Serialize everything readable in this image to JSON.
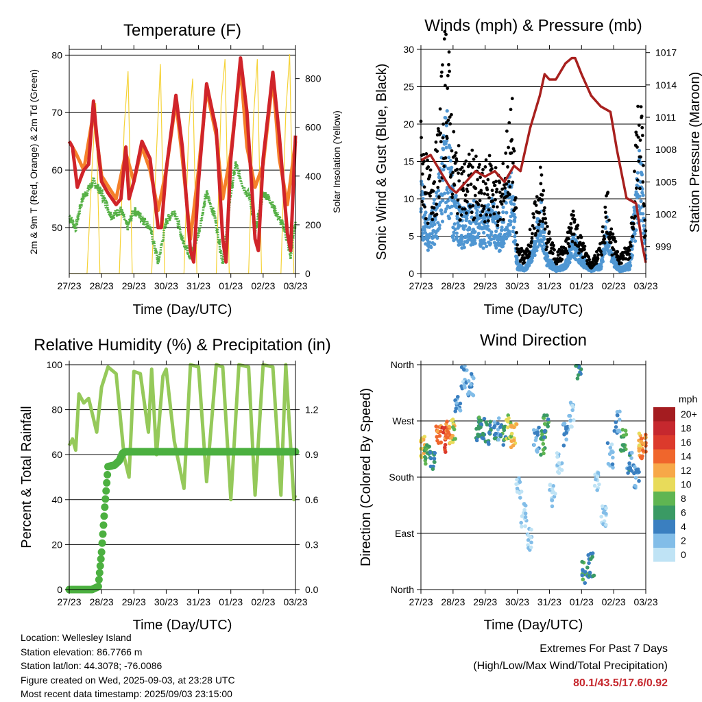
{
  "colors": {
    "temp_red": "#d0242a",
    "temp_orange": "#f5802a",
    "dewpoint_green": "#55b045",
    "solar_yellow": "#f5d236",
    "wind_blue": "#4f96d2",
    "gust_black": "#000000",
    "pressure_maroon": "#a8201e",
    "rh_lightgreen": "#95c95a",
    "precip_green": "#4cb040",
    "extremes_red": "#c6282e"
  },
  "footer": {
    "location": "Location: Wellesley Island",
    "elevation": "Station elevation: 86.7766 m",
    "latlon": "Station lat/lon: 44.3078; -76.0086",
    "created": "Figure created on Wed, 2025-09-03, at 23:28 UTC",
    "recent": "Most recent data timestamp: 2025/09/03 23:15:00"
  },
  "extremes": {
    "title": "Extremes For Past 7 Days",
    "subtitle": "(High/Low/Max Wind/Total Precipitation)",
    "values": "80.1/43.5/17.6/0.92"
  },
  "chart_data": [
    {
      "type": "line",
      "title": "Temperature (F)",
      "xlabel": "Time (Day/UTC)",
      "ylabel": "2m & 9m T (Red, Orange) & 2m Td (Green)",
      "ylabel_right": "Solar Insolation (Yellow)",
      "xticks": [
        "27/23",
        "28/23",
        "29/23",
        "30/23",
        "31/23",
        "01/23",
        "02/23",
        "03/23"
      ],
      "ylim": [
        42,
        81
      ],
      "yticks": [
        50,
        60,
        70,
        80
      ],
      "ylim_right": [
        0,
        920
      ],
      "yticks_right": [
        0,
        200,
        400,
        600,
        800
      ],
      "x_units": "days since 27/23",
      "grid": true,
      "series": [
        {
          "name": "2m T",
          "color": "#d0242a",
          "x": [
            0,
            0.1,
            0.25,
            0.38,
            0.45,
            0.6,
            0.75,
            0.85,
            1.0,
            1.2,
            1.45,
            1.6,
            1.75,
            1.85,
            2.0,
            2.25,
            2.5,
            2.75,
            2.85,
            3.0,
            3.3,
            3.5,
            3.75,
            3.85,
            4.0,
            4.25,
            4.55,
            4.75,
            4.85,
            5.0,
            5.3,
            5.5,
            5.75,
            5.85,
            6.0,
            6.3,
            6.5,
            6.75,
            6.85,
            7.0
          ],
          "values": [
            65,
            64,
            57,
            59,
            60,
            61,
            72,
            66,
            58,
            56,
            54,
            55,
            64,
            55,
            58,
            65,
            62,
            50,
            50,
            60,
            73,
            64,
            46,
            44,
            58,
            75,
            67,
            48,
            44,
            62,
            79.5,
            70,
            48,
            46,
            62,
            77,
            66,
            49,
            46,
            66
          ]
        },
        {
          "name": "9m T",
          "color": "#f5802a",
          "x": [
            0,
            0.2,
            0.45,
            0.75,
            1.0,
            1.45,
            1.75,
            2.0,
            2.25,
            2.5,
            2.75,
            3.0,
            3.3,
            3.5,
            3.75,
            4.0,
            4.25,
            4.55,
            4.75,
            5.0,
            5.3,
            5.5,
            5.75,
            6.0,
            6.3,
            6.5,
            6.75,
            7.0
          ],
          "values": [
            65,
            63,
            60,
            70,
            59,
            55,
            63,
            58,
            64,
            60,
            53,
            60,
            72,
            62,
            48,
            60,
            74,
            66,
            55,
            63,
            78,
            64,
            57,
            61,
            76,
            62,
            54,
            65
          ]
        },
        {
          "name": "2m Td",
          "color": "#55b045",
          "x": [
            0,
            0.2,
            0.4,
            0.75,
            1.0,
            1.3,
            1.6,
            1.8,
            2.0,
            2.2,
            2.5,
            2.75,
            3.0,
            3.25,
            3.5,
            3.75,
            4.0,
            4.25,
            4.5,
            4.75,
            5.0,
            5.15,
            5.4,
            5.6,
            5.75,
            6.0,
            6.2,
            6.45,
            6.65,
            6.85,
            7.0
          ],
          "values": [
            52,
            50,
            55,
            58,
            56,
            52,
            53,
            50,
            53,
            52,
            50,
            44,
            51,
            53,
            48,
            45,
            49,
            56,
            52,
            44,
            56,
            61,
            57,
            55,
            49,
            56,
            55,
            52,
            50,
            45,
            51
          ]
        },
        {
          "name": "Solar Insolation",
          "color": "#f5d236",
          "axis": "right",
          "x": [
            0,
            0.55,
            0.7,
            0.82,
            0.95,
            1.55,
            1.7,
            1.82,
            1.95,
            2.55,
            2.7,
            2.82,
            2.95,
            3.55,
            3.7,
            3.82,
            3.95,
            4.55,
            4.7,
            4.82,
            4.95,
            5.55,
            5.7,
            5.82,
            5.95,
            6.55,
            6.7,
            6.82,
            6.95,
            7.0
          ],
          "values": [
            0,
            0,
            420,
            700,
            0,
            0,
            600,
            830,
            0,
            0,
            500,
            860,
            0,
            0,
            600,
            800,
            0,
            0,
            700,
            880,
            0,
            0,
            640,
            880,
            0,
            0,
            660,
            900,
            0,
            0
          ]
        }
      ]
    },
    {
      "type": "scatter",
      "title": "Winds (mph) & Pressure (mb)",
      "xlabel": "Time (Day/UTC)",
      "ylabel": "Sonic Wind & Gust (Blue, Black)",
      "ylabel_right": "Station Pressure (Maroon)",
      "xticks": [
        "27/23",
        "28/23",
        "29/23",
        "30/23",
        "31/23",
        "01/23",
        "02/23",
        "03/23"
      ],
      "ylim": [
        0,
        30
      ],
      "yticks": [
        0,
        5,
        10,
        15,
        20,
        25,
        30
      ],
      "ylim_right": [
        996.5,
        1017.3
      ],
      "yticks_right": [
        999,
        1002,
        1005,
        1008,
        1011,
        1014,
        1017
      ],
      "x_units": "days since 27/23",
      "grid": true,
      "series": [
        {
          "name": "Gust",
          "color": "#000000",
          "x": [
            0,
            0.25,
            0.5,
            0.7,
            0.8,
            0.9,
            1.0,
            1.3,
            1.6,
            1.9,
            2.2,
            2.5,
            2.7,
            2.85,
            3.0,
            3.25,
            3.5,
            3.75,
            3.9,
            4.2,
            4.5,
            4.75,
            4.95,
            5.3,
            5.6,
            5.8,
            5.95,
            6.2,
            6.5,
            6.75,
            6.85,
            7.0
          ],
          "values": [
            15,
            10,
            13,
            22,
            27,
            20,
            14,
            11,
            12,
            10,
            12,
            9,
            15,
            17,
            3,
            2,
            6,
            11,
            5,
            2,
            3,
            7,
            4,
            1,
            3,
            9,
            4,
            2,
            3,
            17,
            19,
            4
          ]
        },
        {
          "name": "Wind",
          "color": "#4f96d2",
          "x": [
            0,
            0.25,
            0.5,
            0.7,
            0.8,
            0.9,
            1.0,
            1.3,
            1.6,
            1.9,
            2.2,
            2.5,
            2.7,
            2.85,
            3.0,
            3.25,
            3.5,
            3.75,
            3.9,
            4.2,
            4.5,
            4.75,
            4.95,
            5.3,
            5.6,
            5.8,
            5.95,
            6.2,
            6.5,
            6.75,
            6.85,
            7.0
          ],
          "values": [
            9,
            5,
            8,
            13,
            16,
            12,
            8,
            6,
            7,
            6,
            7,
            5,
            9,
            10,
            1,
            0.5,
            3,
            7,
            2,
            0.5,
            1,
            4,
            2,
            0.5,
            1,
            6,
            2,
            0.5,
            1,
            11,
            12,
            2
          ]
        },
        {
          "name": "Station Pressure",
          "color": "#a8201e",
          "axis": "right",
          "x": [
            0,
            0.3,
            0.6,
            0.9,
            1.1,
            1.4,
            1.7,
            2.0,
            2.3,
            2.6,
            2.9,
            3.1,
            3.4,
            3.7,
            3.85,
            4.0,
            4.2,
            4.5,
            4.7,
            4.8,
            5.0,
            5.3,
            5.6,
            5.9,
            6.1,
            6.4,
            6.7,
            6.9,
            7.0
          ],
          "values": [
            1007,
            1007.5,
            1006,
            1004.5,
            1004,
            1005,
            1006,
            1005.5,
            1006,
            1005,
            1006.5,
            1006,
            1010,
            1013,
            1015,
            1014.5,
            1014.5,
            1016,
            1016.5,
            1016.5,
            1015,
            1013,
            1012,
            1011.5,
            1008,
            1003.5,
            1003,
            999,
            997.5
          ]
        }
      ]
    },
    {
      "type": "line",
      "title": "Relative Humidity (%) & Precipitation (in)",
      "xlabel": "Time (Day/UTC)",
      "ylabel": "Percent & Total Rainfall",
      "xticks": [
        "27/23",
        "28/23",
        "29/23",
        "30/23",
        "31/23",
        "01/23",
        "02/23",
        "03/23"
      ],
      "ylim": [
        0,
        100
      ],
      "yticks": [
        0,
        20,
        40,
        60,
        80,
        100
      ],
      "ylim_right": [
        0,
        1.5
      ],
      "yticks_right": [
        "0.0",
        "0.3",
        "0.6",
        "0.9",
        "1.2"
      ],
      "x_units": "days since 27/23",
      "grid": true,
      "series": [
        {
          "name": "Relative Humidity",
          "color": "#95c95a",
          "x": [
            0,
            0.1,
            0.2,
            0.3,
            0.45,
            0.6,
            0.85,
            1.0,
            1.2,
            1.45,
            1.7,
            1.85,
            2.0,
            2.2,
            2.45,
            2.55,
            2.7,
            2.9,
            3.0,
            3.25,
            3.55,
            3.75,
            4.0,
            4.25,
            4.55,
            4.75,
            5.0,
            5.25,
            5.55,
            5.75,
            6.0,
            6.3,
            6.55,
            6.7,
            6.95,
            7.0
          ],
          "values": [
            64,
            67,
            62,
            87,
            83,
            85,
            70,
            90,
            99,
            96,
            59,
            50,
            97,
            96,
            70,
            98,
            60,
            95,
            98,
            66,
            45,
            100,
            99,
            48,
            100,
            99,
            40,
            100,
            99,
            42,
            100,
            99,
            42,
            100,
            40,
            42
          ]
        },
        {
          "name": "Total Precipitation",
          "color": "#4cb040",
          "axis": "right",
          "x": [
            0,
            0.7,
            0.9,
            1.0,
            1.1,
            1.2,
            1.4,
            1.55,
            1.65,
            1.75,
            2.0,
            3.0,
            4.0,
            5.0,
            6.0,
            7.0
          ],
          "values": [
            0,
            0,
            0.02,
            0.25,
            0.55,
            0.82,
            0.83,
            0.86,
            0.91,
            0.92,
            0.92,
            0.92,
            0.92,
            0.92,
            0.92,
            0.92
          ]
        }
      ]
    },
    {
      "type": "scatter",
      "title": "Wind Direction",
      "xlabel": "Time (Day/UTC)",
      "ylabel": "Direction (Colored By Speed)",
      "xticks": [
        "27/23",
        "28/23",
        "29/23",
        "30/23",
        "31/23",
        "01/23",
        "02/23",
        "03/23"
      ],
      "yticks": [
        "North",
        "East",
        "South",
        "West",
        "North"
      ],
      "ylim": [
        0,
        360
      ],
      "x_units": "days since 27/23",
      "grid": true,
      "legend": {
        "title": "mph",
        "labels": [
          "20+",
          "18",
          "16",
          "14",
          "12",
          "10",
          "8",
          "6",
          "4",
          "2",
          "0"
        ],
        "colors": [
          "#a41c20",
          "#c6282e",
          "#dc3a2c",
          "#f0662c",
          "#f7a848",
          "#e8db5a",
          "#5fb552",
          "#3a9a64",
          "#3a7fc0",
          "#82bde8",
          "#bfe3f5"
        ]
      },
      "series": [
        {
          "name": "direction",
          "x": [
            0.05,
            0.2,
            0.35,
            0.55,
            0.7,
            0.85,
            1.0,
            1.15,
            1.35,
            1.55,
            1.75,
            1.9,
            2.1,
            2.35,
            2.55,
            2.75,
            2.9,
            3.05,
            3.2,
            3.4,
            3.6,
            3.8,
            3.9,
            4.1,
            4.3,
            4.5,
            4.7,
            4.9,
            5.1,
            5.3,
            5.5,
            5.7,
            5.9,
            6.1,
            6.3,
            6.5,
            6.7,
            6.85,
            6.95
          ],
          "values": [
            230,
            220,
            210,
            245,
            240,
            250,
            255,
            300,
            340,
            330,
            255,
            260,
            250,
            255,
            250,
            260,
            245,
            160,
            120,
            80,
            240,
            235,
            260,
            150,
            200,
            250,
            280,
            355,
            30,
            40,
            170,
            120,
            215,
            270,
            240,
            200,
            180,
            230,
            230
          ],
          "speeds": [
            11,
            7,
            5,
            14,
            16,
            13,
            10,
            3,
            2,
            3,
            5,
            6,
            5,
            4,
            6,
            9,
            11,
            1,
            1,
            1,
            3,
            7,
            6,
            1,
            0,
            3,
            1,
            5,
            6,
            5,
            0,
            1,
            2,
            3,
            7,
            4,
            3,
            12,
            13
          ]
        }
      ]
    }
  ]
}
